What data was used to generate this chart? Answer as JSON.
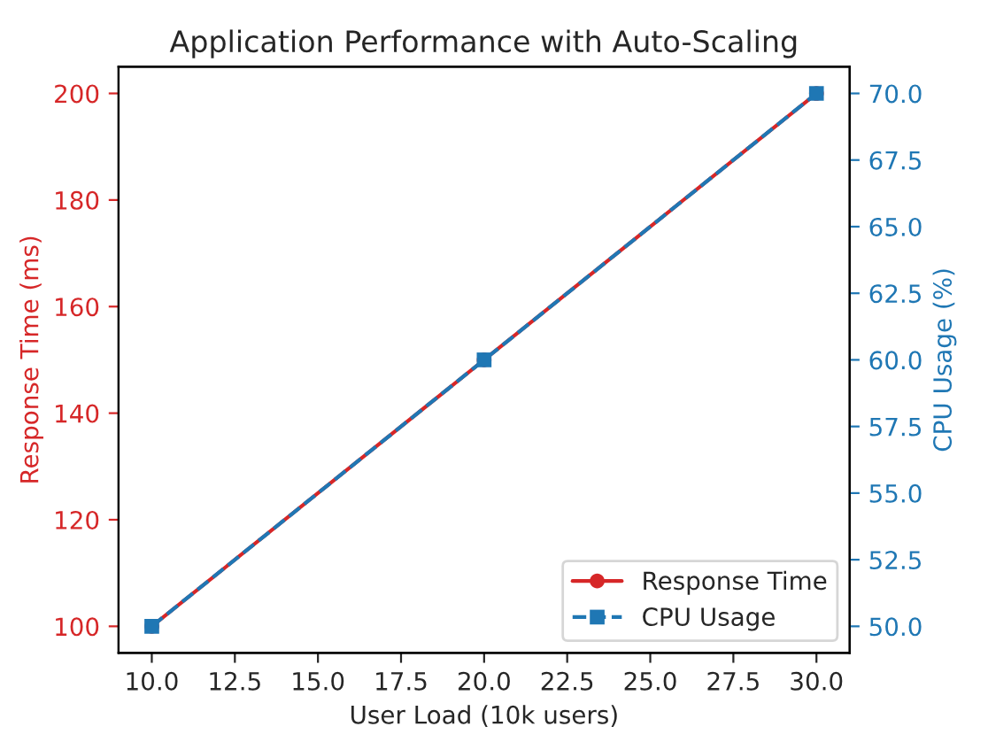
{
  "chart_data": {
    "type": "line",
    "title": "Application Performance with Auto-Scaling",
    "xlabel": "User Load (10k users)",
    "ylabel": "Response Time (ms)",
    "y2label": "CPU Usage (%)",
    "x": [
      10,
      20,
      30
    ],
    "series": [
      {
        "name": "Response Time",
        "color": "#d62728",
        "values": [
          100,
          150,
          200
        ],
        "marker": "circle",
        "line_style": "solid"
      },
      {
        "name": "CPU Usage",
        "color": "#1f77b4",
        "values": [
          50,
          60,
          70
        ],
        "axis": "y2",
        "marker": "square",
        "line_style": "dashed"
      }
    ],
    "xlim": [
      9,
      31
    ],
    "xticks": [
      {
        "value": 10,
        "label": "10.0"
      },
      12.5,
      {
        "value": 15,
        "label": "15.0"
      },
      17.5,
      {
        "value": 20,
        "label": "20.0"
      },
      22.5,
      {
        "value": 25,
        "label": "25.0"
      },
      27.5,
      {
        "value": 30,
        "label": "30.0"
      }
    ],
    "ylim": [
      95,
      205
    ],
    "yticks": [
      100,
      120,
      140,
      160,
      180,
      200
    ],
    "y2lim": [
      49,
      71
    ],
    "y2ticks": [
      {
        "value": 50,
        "label": "50.0"
      },
      52.5,
      {
        "value": 55,
        "label": "55.0"
      },
      57.5,
      {
        "value": 60,
        "label": "60.0"
      },
      62.5,
      {
        "value": 65,
        "label": "65.0"
      },
      67.5,
      {
        "value": 70,
        "label": "70.0"
      }
    ],
    "legend": "bottom right",
    "grid": false
  }
}
